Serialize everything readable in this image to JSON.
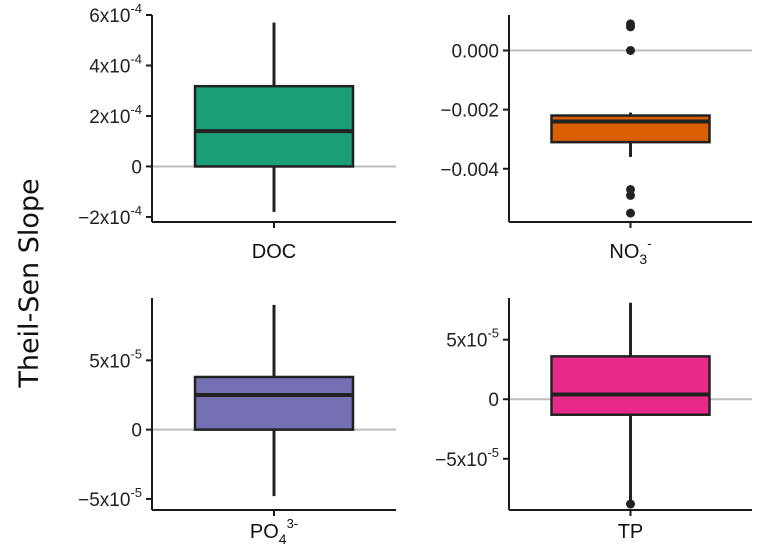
{
  "chart_data": {
    "type": "box",
    "ylabel": "Theil-Sen Slope",
    "panels": [
      {
        "id": "doc",
        "category": {
          "base": "DOC",
          "sub": "",
          "sup": ""
        },
        "ylim": [
          -0.00022,
          0.0006
        ],
        "ticks": [
          {
            "value": -0.0002,
            "label": {
              "mant": "−2x10",
              "exp": "-4"
            }
          },
          {
            "value": 0,
            "label": {
              "mant": "0",
              "exp": ""
            }
          },
          {
            "value": 0.0002,
            "label": {
              "mant": "2x10",
              "exp": "-4"
            }
          },
          {
            "value": 0.0004,
            "label": {
              "mant": "4x10",
              "exp": "-4"
            }
          },
          {
            "value": 0.0006,
            "label": {
              "mant": "6x10",
              "exp": "-4"
            }
          }
        ],
        "color": "#1b9e77",
        "box": {
          "whisker_low": -0.00018,
          "q1": 0.0,
          "median": 0.00014,
          "q3": 0.000318,
          "whisker_high": 0.00057
        },
        "outliers": []
      },
      {
        "id": "no3",
        "category": {
          "base": "NO",
          "sub": "3",
          "sup": "-"
        },
        "ylim": [
          -0.0058,
          0.0012
        ],
        "ticks": [
          {
            "value": -0.004,
            "label": {
              "mant": "−0.004",
              "exp": ""
            }
          },
          {
            "value": -0.002,
            "label": {
              "mant": "−0.002",
              "exp": ""
            }
          },
          {
            "value": 0.0,
            "label": {
              "mant": "0.000",
              "exp": ""
            }
          }
        ],
        "color": "#d95f02",
        "box": {
          "whisker_low": -0.0036,
          "q1": -0.0031,
          "median": -0.0024,
          "q3": -0.0022,
          "whisker_high": -0.0021
        },
        "outliers": [
          0.0009,
          0.0008,
          0.0,
          -0.0047,
          -0.0049,
          -0.0055
        ]
      },
      {
        "id": "po4",
        "category": {
          "base": "PO",
          "sub": "4",
          "sup": "3-"
        },
        "ylim": [
          -5.8e-05,
          9.5e-05
        ],
        "ticks": [
          {
            "value": -5e-05,
            "label": {
              "mant": "−5x10",
              "exp": "-5"
            }
          },
          {
            "value": 0,
            "label": {
              "mant": "0",
              "exp": ""
            }
          },
          {
            "value": 5e-05,
            "label": {
              "mant": "5x10",
              "exp": "-5"
            }
          }
        ],
        "color": "#7570b3",
        "box": {
          "whisker_low": -4.8e-05,
          "q1": 0.0,
          "median": 2.5e-05,
          "q3": 3.8e-05,
          "whisker_high": 9e-05
        },
        "outliers": []
      },
      {
        "id": "tp",
        "category": {
          "base": "TP",
          "sub": "",
          "sup": ""
        },
        "ylim": [
          -9.3e-05,
          8.5e-05
        ],
        "ticks": [
          {
            "value": -5e-05,
            "label": {
              "mant": "−5x10",
              "exp": "-5"
            }
          },
          {
            "value": 0,
            "label": {
              "mant": "0",
              "exp": ""
            }
          },
          {
            "value": 5e-05,
            "label": {
              "mant": "5x10",
              "exp": "-5"
            }
          }
        ],
        "color": "#e7298a",
        "box": {
          "whisker_low": -9e-05,
          "q1": -1.3e-05,
          "median": 4e-06,
          "q3": 3.6e-05,
          "whisker_high": 8.1e-05
        },
        "outliers": [
          -8.8e-05
        ]
      }
    ]
  }
}
